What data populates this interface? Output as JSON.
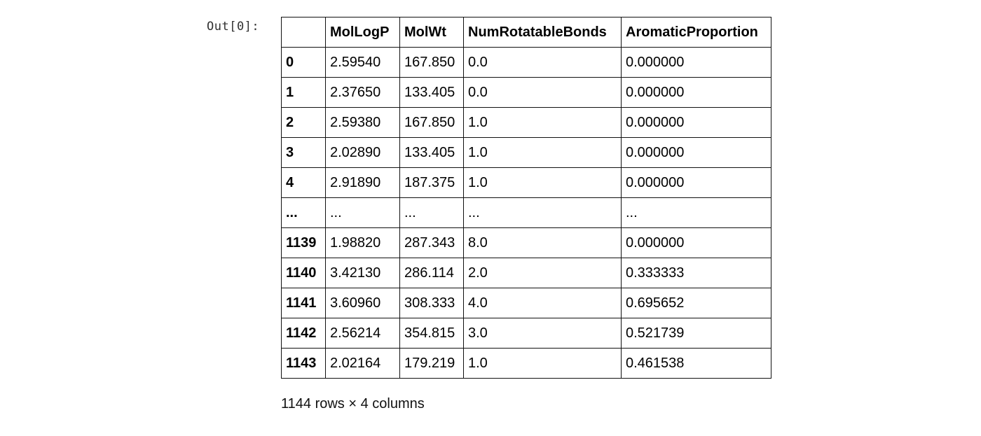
{
  "cell": {
    "prompt": "Out[0]:"
  },
  "dataframe": {
    "columns": [
      "MolLogP",
      "MolWt",
      "NumRotatableBonds",
      "AromaticProportion"
    ],
    "rows": [
      {
        "index": "0",
        "values": [
          "2.59540",
          "167.850",
          "0.0",
          "0.000000"
        ]
      },
      {
        "index": "1",
        "values": [
          "2.37650",
          "133.405",
          "0.0",
          "0.000000"
        ]
      },
      {
        "index": "2",
        "values": [
          "2.59380",
          "167.850",
          "1.0",
          "0.000000"
        ]
      },
      {
        "index": "3",
        "values": [
          "2.02890",
          "133.405",
          "1.0",
          "0.000000"
        ]
      },
      {
        "index": "4",
        "values": [
          "2.91890",
          "187.375",
          "1.0",
          "0.000000"
        ]
      },
      {
        "index": "...",
        "values": [
          "...",
          "...",
          "...",
          "..."
        ]
      },
      {
        "index": "1139",
        "values": [
          "1.98820",
          "287.343",
          "8.0",
          "0.000000"
        ]
      },
      {
        "index": "1140",
        "values": [
          "3.42130",
          "286.114",
          "2.0",
          "0.333333"
        ]
      },
      {
        "index": "1141",
        "values": [
          "3.60960",
          "308.333",
          "4.0",
          "0.695652"
        ]
      },
      {
        "index": "1142",
        "values": [
          "2.56214",
          "354.815",
          "3.0",
          "0.521739"
        ]
      },
      {
        "index": "1143",
        "values": [
          "2.02164",
          "179.219",
          "1.0",
          "0.461538"
        ]
      }
    ],
    "shape_text": "1144 rows × 4 columns"
  }
}
